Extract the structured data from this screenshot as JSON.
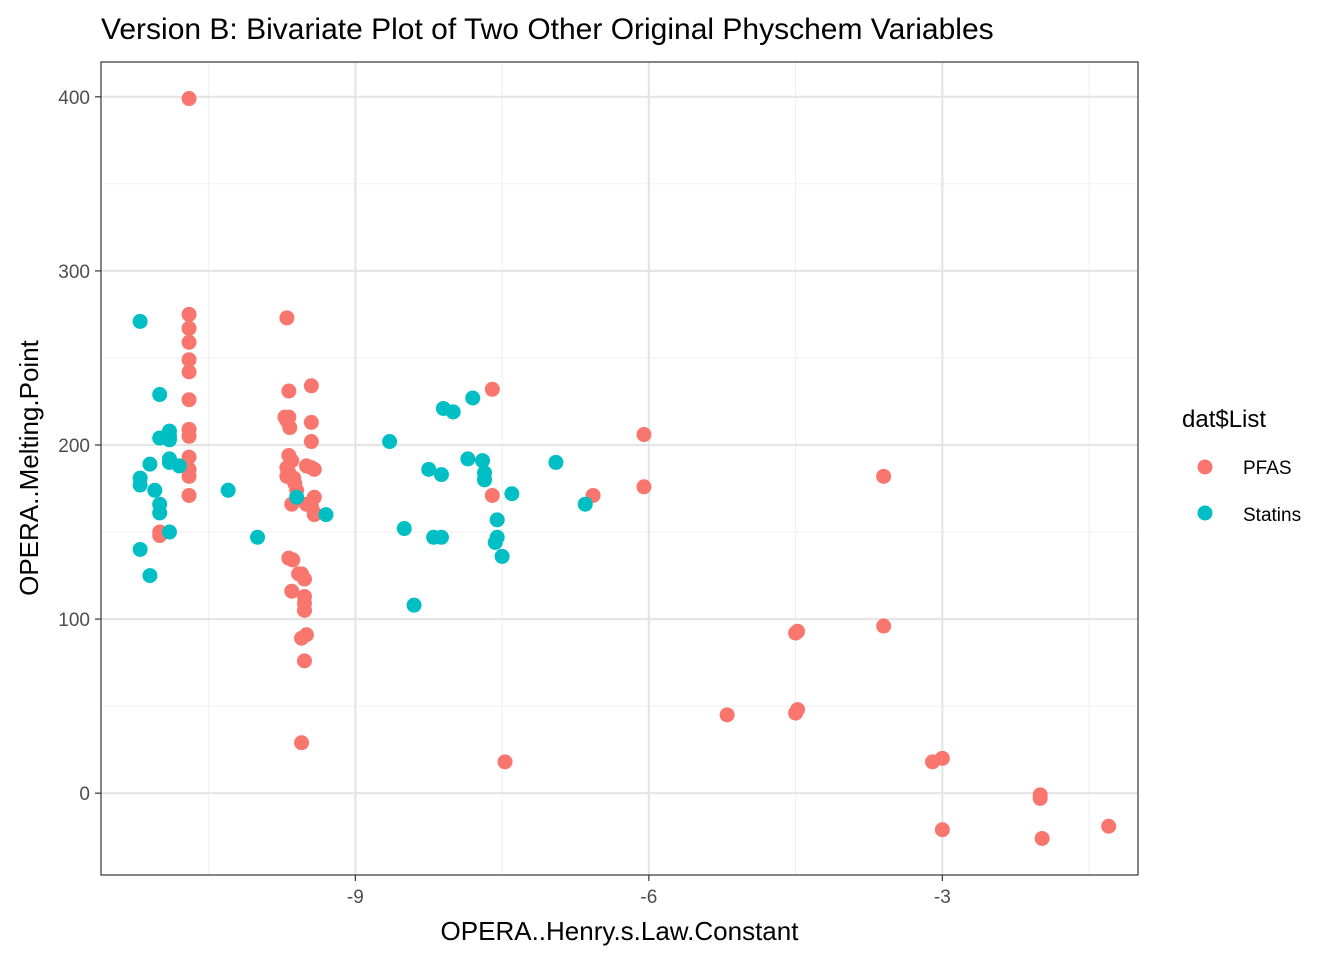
{
  "chart_data": {
    "type": "scatter",
    "title": "Version B: Bivariate Plot of Two Other Original Physchem Variables",
    "xlabel": "OPERA..Henry.s.Law.Constant",
    "ylabel": "OPERA..Melting.Point",
    "xlim": [
      -11.6,
      -1.0
    ],
    "ylim": [
      -47,
      420
    ],
    "x_ticks": [
      -9,
      -6,
      -3
    ],
    "x_tick_labels": [
      "-9",
      "-6",
      "-3"
    ],
    "x_minor": [
      -10.5,
      -7.5,
      -4.5,
      -1.5
    ],
    "y_ticks": [
      0,
      100,
      200,
      300,
      400
    ],
    "y_tick_labels": [
      "0",
      "100",
      "200",
      "300",
      "400"
    ],
    "y_minor": [
      50,
      150,
      250,
      350
    ],
    "grid": true,
    "legend": {
      "title": "dat$List",
      "position": "right",
      "entries": [
        {
          "label": "PFAS",
          "color": "#F8766D"
        },
        {
          "label": "Statins",
          "color": "#00BFC4"
        }
      ]
    },
    "series": [
      {
        "name": "PFAS",
        "color": "#F8766D",
        "points": [
          [
            -10.7,
            399
          ],
          [
            -10.7,
            275
          ],
          [
            -10.7,
            267
          ],
          [
            -10.7,
            259
          ],
          [
            -10.7,
            249
          ],
          [
            -10.7,
            242
          ],
          [
            -10.7,
            226
          ],
          [
            -10.7,
            209
          ],
          [
            -10.7,
            205
          ],
          [
            -10.7,
            193
          ],
          [
            -10.7,
            186
          ],
          [
            -10.7,
            182
          ],
          [
            -10.7,
            171
          ],
          [
            -11.0,
            150
          ],
          [
            -11.0,
            148
          ],
          [
            -9.7,
            273
          ],
          [
            -9.68,
            231
          ],
          [
            -9.72,
            216
          ],
          [
            -9.68,
            216
          ],
          [
            -9.7,
            214
          ],
          [
            -9.67,
            210
          ],
          [
            -9.68,
            194
          ],
          [
            -9.65,
            191
          ],
          [
            -9.7,
            187
          ],
          [
            -9.68,
            184
          ],
          [
            -9.63,
            181
          ],
          [
            -9.7,
            182
          ],
          [
            -9.62,
            178
          ],
          [
            -9.6,
            174
          ],
          [
            -9.65,
            166
          ],
          [
            -9.68,
            135
          ],
          [
            -9.64,
            134
          ],
          [
            -9.58,
            126
          ],
          [
            -9.55,
            126
          ],
          [
            -9.52,
            123
          ],
          [
            -9.65,
            116
          ],
          [
            -9.52,
            113
          ],
          [
            -9.52,
            109
          ],
          [
            -9.52,
            105
          ],
          [
            -9.55,
            89
          ],
          [
            -9.5,
            91
          ],
          [
            -9.52,
            76
          ],
          [
            -9.55,
            29
          ],
          [
            -9.45,
            234
          ],
          [
            -9.45,
            213
          ],
          [
            -9.45,
            202
          ],
          [
            -9.5,
            188
          ],
          [
            -9.45,
            187
          ],
          [
            -9.42,
            186
          ],
          [
            -9.42,
            170
          ],
          [
            -9.5,
            166
          ],
          [
            -9.45,
            165
          ],
          [
            -9.42,
            161
          ],
          [
            -9.42,
            160
          ],
          [
            -7.6,
            232
          ],
          [
            -7.6,
            171
          ],
          [
            -7.47,
            18
          ],
          [
            -6.57,
            171
          ],
          [
            -6.05,
            206
          ],
          [
            -6.05,
            176
          ],
          [
            -5.2,
            45
          ],
          [
            -4.5,
            92
          ],
          [
            -4.48,
            93
          ],
          [
            -4.5,
            46
          ],
          [
            -4.48,
            48
          ],
          [
            -3.6,
            182
          ],
          [
            -3.6,
            96
          ],
          [
            -3.1,
            18
          ],
          [
            -3.0,
            20
          ],
          [
            -3.0,
            -21
          ],
          [
            -2.0,
            -1
          ],
          [
            -2.0,
            -3
          ],
          [
            -1.98,
            -26
          ],
          [
            -1.3,
            -19
          ]
        ]
      },
      {
        "name": "Statins",
        "color": "#00BFC4",
        "points": [
          [
            -11.2,
            271
          ],
          [
            -11.2,
            181
          ],
          [
            -11.2,
            177
          ],
          [
            -11.2,
            140
          ],
          [
            -11.1,
            189
          ],
          [
            -11.05,
            174
          ],
          [
            -11.1,
            125
          ],
          [
            -11.0,
            229
          ],
          [
            -11.0,
            204
          ],
          [
            -11.0,
            166
          ],
          [
            -11.0,
            161
          ],
          [
            -10.9,
            208
          ],
          [
            -10.9,
            205
          ],
          [
            -10.9,
            203
          ],
          [
            -10.9,
            192
          ],
          [
            -10.9,
            190
          ],
          [
            -10.9,
            150
          ],
          [
            -10.8,
            188
          ],
          [
            -10.3,
            174
          ],
          [
            -10.0,
            147
          ],
          [
            -9.6,
            170
          ],
          [
            -9.3,
            160
          ],
          [
            -8.65,
            202
          ],
          [
            -8.5,
            152
          ],
          [
            -8.4,
            108
          ],
          [
            -8.25,
            186
          ],
          [
            -8.2,
            147
          ],
          [
            -8.12,
            147
          ],
          [
            -8.12,
            183
          ],
          [
            -8.1,
            221
          ],
          [
            -8.0,
            219
          ],
          [
            -7.85,
            192
          ],
          [
            -7.8,
            227
          ],
          [
            -7.7,
            191
          ],
          [
            -7.68,
            184
          ],
          [
            -7.68,
            180
          ],
          [
            -7.55,
            157
          ],
          [
            -7.55,
            147
          ],
          [
            -7.57,
            144
          ],
          [
            -7.5,
            136
          ],
          [
            -7.4,
            172
          ],
          [
            -6.95,
            190
          ],
          [
            -6.65,
            166
          ]
        ]
      }
    ]
  }
}
